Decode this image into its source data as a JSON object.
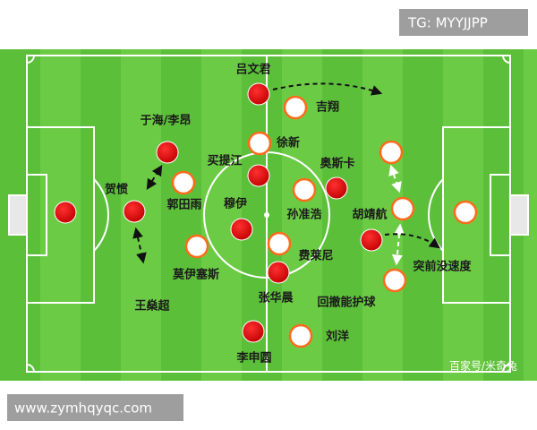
{
  "header": {
    "tag": "TG: MYYJJPP"
  },
  "footer": {
    "url": "www.zymhqyqc.com",
    "credit": "百家号/米奇兔"
  },
  "labels": [
    "吕文君",
    "吉翔",
    "于海/李昂",
    "徐新",
    "买提江",
    "奥斯卡",
    "贺惯",
    "郭田雨",
    "穆伊",
    "孙准浩",
    "胡靖航",
    "费莱尼",
    "突前没速度",
    "莫伊塞斯",
    "张华晨",
    "回撤能护球",
    "王燊超",
    "刘洋",
    "李申圆"
  ]
}
